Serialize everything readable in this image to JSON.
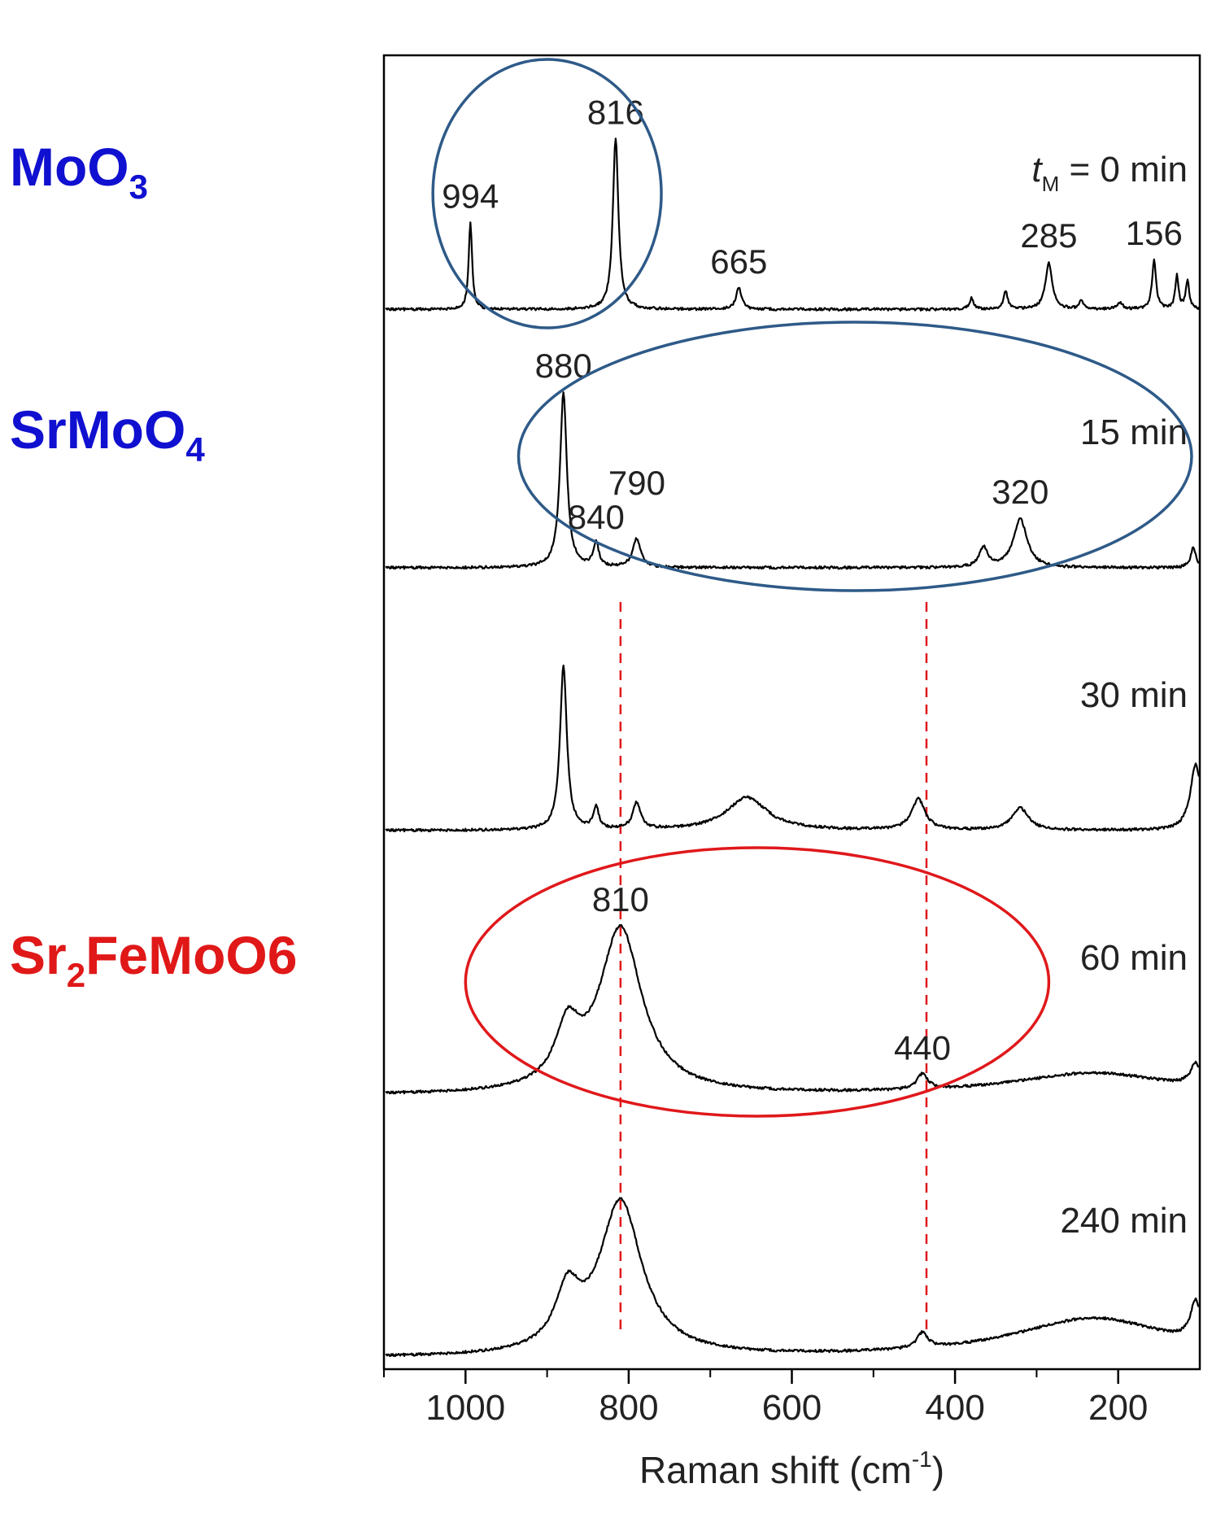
{
  "chart_data": {
    "type": "line",
    "title": "",
    "xlabel": "Raman shift (cm",
    "xlabel_sup": "-1",
    "xlabel_close": ")",
    "ylabel": "",
    "xlim": [
      1100,
      100
    ],
    "x_reversed": true,
    "x_ticks": [
      1000,
      800,
      600,
      400,
      200
    ],
    "x_tick_labels": [
      "1000",
      "800",
      "600",
      "400",
      "200"
    ],
    "grid": false,
    "legend": "none",
    "colors": {
      "trace": "#000000",
      "blue_ellipse": "#2e5a88",
      "red_ellipse": "#e0181b",
      "blue_label": "#1010d0",
      "red_label": "#e01818",
      "reference_line": "#e0181b"
    },
    "series": [
      {
        "name": "t_M = 0 min",
        "label_italic": "t",
        "label_sub": "M",
        "label_rest": " = 0 min",
        "baseline": 0.01,
        "peaks": [
          {
            "x": 994,
            "height": 0.4,
            "width": 2.5
          },
          {
            "x": 816,
            "height": 0.78,
            "width": 4
          },
          {
            "x": 665,
            "height": 0.1,
            "width": 4
          },
          {
            "x": 380,
            "height": 0.05,
            "width": 3
          },
          {
            "x": 338,
            "height": 0.08,
            "width": 3
          },
          {
            "x": 285,
            "height": 0.21,
            "width": 5
          },
          {
            "x": 245,
            "height": 0.04,
            "width": 3
          },
          {
            "x": 198,
            "height": 0.03,
            "width": 4
          },
          {
            "x": 156,
            "height": 0.22,
            "width": 3
          },
          {
            "x": 128,
            "height": 0.15,
            "width": 2.5
          },
          {
            "x": 115,
            "height": 0.13,
            "width": 2.5
          }
        ],
        "annotations": [
          {
            "text": "994",
            "x": 994
          },
          {
            "text": "816",
            "x": 816
          },
          {
            "text": "665",
            "x": 665
          },
          {
            "text": "285",
            "x": 285
          },
          {
            "text": "156",
            "x": 156
          }
        ]
      },
      {
        "name": "15 min",
        "label": "15 min",
        "baseline": 0.03,
        "peaks": [
          {
            "x": 880,
            "height": 0.8,
            "width": 5
          },
          {
            "x": 840,
            "height": 0.11,
            "width": 4
          },
          {
            "x": 790,
            "height": 0.13,
            "width": 6
          },
          {
            "x": 365,
            "height": 0.09,
            "width": 6
          },
          {
            "x": 320,
            "height": 0.22,
            "width": 10
          },
          {
            "x": 108,
            "height": 0.09,
            "width": 4
          }
        ],
        "annotations": [
          {
            "text": "880",
            "x": 880
          },
          {
            "text": "840",
            "x": 840
          },
          {
            "text": "790",
            "x": 790
          },
          {
            "text": "320",
            "x": 320
          }
        ]
      },
      {
        "name": "30 min",
        "label": "30 min",
        "baseline": 0.03,
        "peaks": [
          {
            "x": 880,
            "height": 0.75,
            "width": 5
          },
          {
            "x": 840,
            "height": 0.1,
            "width": 4
          },
          {
            "x": 790,
            "height": 0.12,
            "width": 6
          },
          {
            "x": 655,
            "height": 0.15,
            "width": 30
          },
          {
            "x": 445,
            "height": 0.14,
            "width": 10
          },
          {
            "x": 320,
            "height": 0.1,
            "width": 12
          },
          {
            "x": 105,
            "height": 0.3,
            "width": 8
          }
        ],
        "annotations": []
      },
      {
        "name": "60 min",
        "label": "60 min",
        "baseline": 0.02,
        "peaks": [
          {
            "x": 810,
            "height": 0.75,
            "width": 32
          },
          {
            "x": 875,
            "height": 0.25,
            "width": 18
          },
          {
            "x": 440,
            "height": 0.07,
            "width": 8
          },
          {
            "x": 230,
            "height": 0.1,
            "width": 120
          },
          {
            "x": 105,
            "height": 0.1,
            "width": 8
          }
        ],
        "annotations": [
          {
            "text": "810",
            "x": 810
          },
          {
            "text": "440",
            "x": 440
          }
        ]
      },
      {
        "name": "240 min",
        "label": "240 min",
        "baseline": 0.02,
        "peaks": [
          {
            "x": 810,
            "height": 0.7,
            "width": 32
          },
          {
            "x": 875,
            "height": 0.25,
            "width": 18
          },
          {
            "x": 440,
            "height": 0.07,
            "width": 8
          },
          {
            "x": 230,
            "height": 0.18,
            "width": 120
          },
          {
            "x": 105,
            "height": 0.18,
            "width": 8
          }
        ],
        "annotations": []
      }
    ],
    "reference_lines": [
      810,
      435
    ],
    "phase_labels": [
      {
        "id": "moo3",
        "base": "MoO",
        "sub": "3",
        "rest": "",
        "color_key": "blue_label",
        "series_index": 0
      },
      {
        "id": "srmoo4",
        "base": "SrMoO",
        "sub": "4",
        "rest": "",
        "color_key": "blue_label",
        "series_index": 1
      },
      {
        "id": "sr2femoo6",
        "base": "Sr",
        "sub": "2",
        "rest": "FeMoO6",
        "color_key": "red_label",
        "series_index": 3
      }
    ],
    "phase_regions": [
      {
        "id": "moo3-region",
        "x_from": 1040,
        "x_to": 760,
        "series_index": 0,
        "color_key": "blue_ellipse"
      },
      {
        "id": "srmoo4-region",
        "x_from": 935,
        "x_to": 110,
        "series_index": 1,
        "color_key": "blue_ellipse"
      },
      {
        "id": "sr2femoo6-region",
        "x_from": 1000,
        "x_to": 285,
        "series_index": 3,
        "color_key": "red_ellipse"
      }
    ]
  }
}
